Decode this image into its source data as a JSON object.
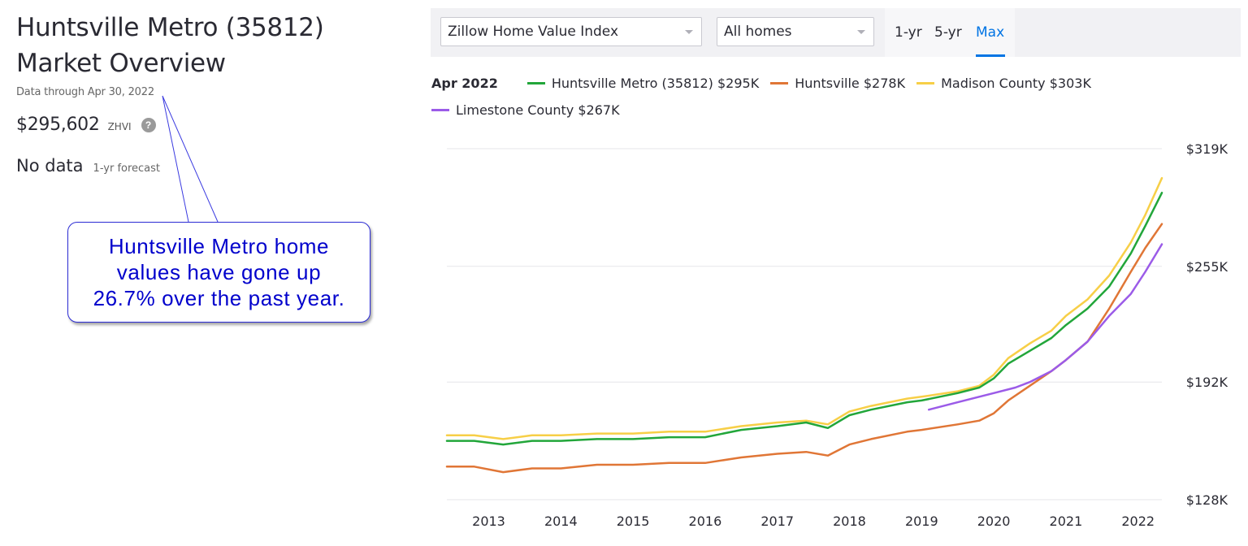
{
  "overview": {
    "title_line1": "Huntsville Metro (35812)",
    "title_line2": "Market Overview",
    "as_of": "Data through Apr 30, 2022",
    "zhvi_value": "$295,602",
    "zhvi_label": "ZHVI",
    "help_icon": "question-circle-icon",
    "forecast_value": "No data",
    "forecast_label": "1-yr forecast"
  },
  "callout": {
    "line1": "Huntsville Metro home",
    "line2": "values have gone up",
    "line3": "26.7% over the past year.",
    "color": "#0000cc"
  },
  "controls": {
    "metric_select": "Zillow Home Value Index",
    "home_type_select": "All homes",
    "ranges": [
      "1-yr",
      "5-yr",
      "Max"
    ],
    "active_range": "Max",
    "accent": "#0074e4"
  },
  "legend": {
    "date": "Apr 2022"
  },
  "chart_data": {
    "type": "line",
    "y_ticks": [
      "$319K",
      "$255K",
      "$192K",
      "$128K"
    ],
    "y_tick_values": [
      319,
      255,
      192,
      128
    ],
    "x_ticks": [
      "2013",
      "2014",
      "2015",
      "2016",
      "2017",
      "2018",
      "2019",
      "2020",
      "2021",
      "2022"
    ],
    "x_tick_values": [
      2013,
      2014,
      2015,
      2016,
      2017,
      2018,
      2019,
      2020,
      2021,
      2022
    ],
    "xlim": [
      2012.42,
      2022.33
    ],
    "ylim": [
      128,
      319
    ],
    "grid": true,
    "y_axis_side": "right",
    "series": [
      {
        "name": "Huntsville Metro (35812)",
        "legend_label": "$295K",
        "color": "#22a63a",
        "points": [
          [
            2012.42,
            160
          ],
          [
            2012.8,
            160
          ],
          [
            2013.2,
            158
          ],
          [
            2013.6,
            160
          ],
          [
            2014.0,
            160
          ],
          [
            2014.5,
            161
          ],
          [
            2015.0,
            161
          ],
          [
            2015.5,
            162
          ],
          [
            2016.0,
            162
          ],
          [
            2016.5,
            166
          ],
          [
            2017.0,
            168
          ],
          [
            2017.4,
            170
          ],
          [
            2017.7,
            167
          ],
          [
            2018.0,
            174
          ],
          [
            2018.3,
            177
          ],
          [
            2018.8,
            181
          ],
          [
            2019.0,
            182
          ],
          [
            2019.5,
            186
          ],
          [
            2019.8,
            189
          ],
          [
            2020.0,
            194
          ],
          [
            2020.2,
            202
          ],
          [
            2020.5,
            209
          ],
          [
            2020.8,
            216
          ],
          [
            2021.0,
            223
          ],
          [
            2021.3,
            232
          ],
          [
            2021.6,
            244
          ],
          [
            2021.9,
            262
          ],
          [
            2022.1,
            277
          ],
          [
            2022.33,
            295
          ]
        ]
      },
      {
        "name": "Huntsville",
        "legend_label": "$278K",
        "color": "#e07636",
        "points": [
          [
            2012.42,
            146
          ],
          [
            2012.8,
            146
          ],
          [
            2013.2,
            143
          ],
          [
            2013.6,
            145
          ],
          [
            2014.0,
            145
          ],
          [
            2014.5,
            147
          ],
          [
            2015.0,
            147
          ],
          [
            2015.5,
            148
          ],
          [
            2016.0,
            148
          ],
          [
            2016.5,
            151
          ],
          [
            2017.0,
            153
          ],
          [
            2017.4,
            154
          ],
          [
            2017.7,
            152
          ],
          [
            2018.0,
            158
          ],
          [
            2018.3,
            161
          ],
          [
            2018.8,
            165
          ],
          [
            2019.0,
            166
          ],
          [
            2019.5,
            169
          ],
          [
            2019.8,
            171
          ],
          [
            2020.0,
            175
          ],
          [
            2020.2,
            182
          ],
          [
            2020.5,
            190
          ],
          [
            2020.8,
            198
          ],
          [
            2021.0,
            204
          ],
          [
            2021.3,
            214
          ],
          [
            2021.6,
            232
          ],
          [
            2021.9,
            252
          ],
          [
            2022.1,
            265
          ],
          [
            2022.33,
            278
          ]
        ]
      },
      {
        "name": "Madison County",
        "legend_label": "$303K",
        "color": "#f7cf47",
        "points": [
          [
            2012.42,
            163
          ],
          [
            2012.8,
            163
          ],
          [
            2013.2,
            161
          ],
          [
            2013.6,
            163
          ],
          [
            2014.0,
            163
          ],
          [
            2014.5,
            164
          ],
          [
            2015.0,
            164
          ],
          [
            2015.5,
            165
          ],
          [
            2016.0,
            165
          ],
          [
            2016.5,
            168
          ],
          [
            2017.0,
            170
          ],
          [
            2017.4,
            171
          ],
          [
            2017.7,
            169
          ],
          [
            2018.0,
            176
          ],
          [
            2018.3,
            179
          ],
          [
            2018.8,
            183
          ],
          [
            2019.0,
            184
          ],
          [
            2019.5,
            187
          ],
          [
            2019.8,
            190
          ],
          [
            2020.0,
            196
          ],
          [
            2020.2,
            205
          ],
          [
            2020.5,
            213
          ],
          [
            2020.8,
            220
          ],
          [
            2021.0,
            228
          ],
          [
            2021.3,
            237
          ],
          [
            2021.6,
            250
          ],
          [
            2021.9,
            268
          ],
          [
            2022.1,
            283
          ],
          [
            2022.33,
            303
          ]
        ]
      },
      {
        "name": "Limestone County",
        "legend_label": "$267K",
        "color": "#9b5be8",
        "points": [
          [
            2019.1,
            177
          ],
          [
            2019.5,
            181
          ],
          [
            2019.8,
            184
          ],
          [
            2020.0,
            186
          ],
          [
            2020.3,
            189
          ],
          [
            2020.5,
            192
          ],
          [
            2020.8,
            198
          ],
          [
            2021.0,
            204
          ],
          [
            2021.3,
            214
          ],
          [
            2021.6,
            228
          ],
          [
            2021.9,
            240
          ],
          [
            2022.1,
            252
          ],
          [
            2022.33,
            267
          ]
        ]
      }
    ]
  }
}
